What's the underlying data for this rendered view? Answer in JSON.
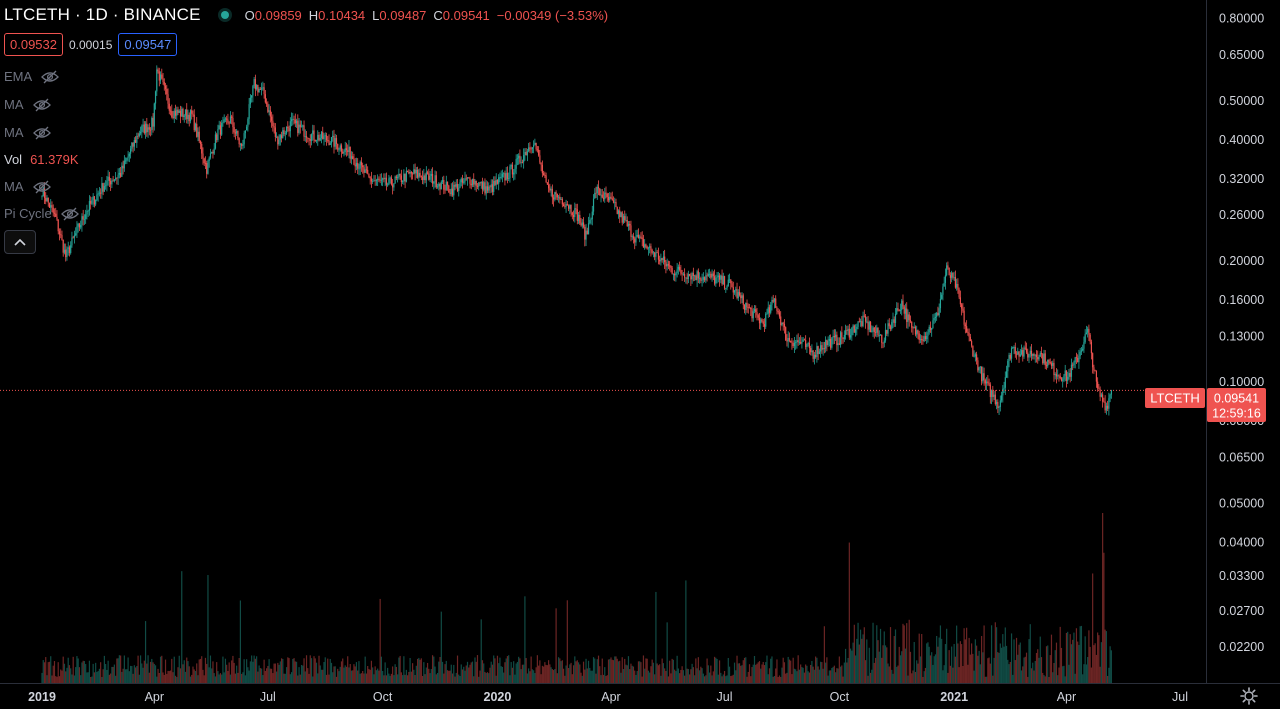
{
  "header": {
    "symbol": "LTCETH",
    "interval": "1D",
    "exchange": "BINANCE",
    "o_label": "O",
    "o_value": "0.09859",
    "h_label": "H",
    "h_value": "0.10434",
    "l_label": "L",
    "l_value": "0.09487",
    "c_label": "C",
    "c_value": "0.09541",
    "change": "−0.00349 (−3.53%)"
  },
  "quotes": {
    "bid": "0.09532",
    "spread": "0.00015",
    "ask": "0.09547"
  },
  "indicators": [
    {
      "name": "EMA"
    },
    {
      "name": "MA"
    },
    {
      "name": "MA"
    },
    {
      "name": "Vol",
      "value": "61.379K"
    },
    {
      "name": "MA"
    },
    {
      "name": "Pi Cycle"
    }
  ],
  "colors": {
    "up": "#26a69a",
    "down": "#ef5350",
    "background": "#000000",
    "axis_text": "#d1d4dc"
  },
  "icons": {
    "status": "dot-icon",
    "hidden": "eye-off-icon",
    "collapse": "chevron-up-icon",
    "settings": "gear-icon"
  },
  "chart_data": {
    "type": "candlestick",
    "symbol": "LTCETH",
    "scale": "log",
    "ylim": [
      0.0195,
      0.86
    ],
    "y_ticks": [
      "0.80000",
      "0.65000",
      "0.50000",
      "0.40000",
      "0.32000",
      "0.26000",
      "0.20000",
      "0.16000",
      "0.13000",
      "0.10000",
      "0.08000",
      "0.06500",
      "0.05000",
      "0.04000",
      "0.03300",
      "0.02700",
      "0.02200"
    ],
    "x_ticks": [
      "2019",
      "Apr",
      "Jul",
      "Oct",
      "2020",
      "Apr",
      "Jul",
      "Oct",
      "2021",
      "Apr",
      "Jul"
    ],
    "x_ticks_bold": [
      "2019",
      "2020",
      "2021"
    ],
    "last_price": {
      "symbol": "LTCETH",
      "value": "0.09541",
      "countdown": "12:59:16"
    },
    "close_series": {
      "note_units": "ETH per LTC, approximate daily closes",
      "x": [
        "2019-01-01",
        "2019-01-12",
        "2019-01-20",
        "2019-02-05",
        "2019-02-20",
        "2019-03-05",
        "2019-03-20",
        "2019-03-31",
        "2019-04-03",
        "2019-04-15",
        "2019-05-01",
        "2019-05-13",
        "2019-05-22",
        "2019-06-01",
        "2019-06-10",
        "2019-06-20",
        "2019-06-28",
        "2019-07-08",
        "2019-07-20",
        "2019-08-05",
        "2019-08-20",
        "2019-09-05",
        "2019-09-20",
        "2019-10-05",
        "2019-10-25",
        "2019-11-10",
        "2019-11-25",
        "2019-12-10",
        "2019-12-25",
        "2020-01-10",
        "2020-01-20",
        "2020-01-30",
        "2020-02-10",
        "2020-02-25",
        "2020-03-05",
        "2020-03-12",
        "2020-03-20",
        "2020-04-01",
        "2020-04-20",
        "2020-05-05",
        "2020-05-20",
        "2020-06-05",
        "2020-06-20",
        "2020-07-05",
        "2020-07-20",
        "2020-08-01",
        "2020-08-10",
        "2020-08-20",
        "2020-09-01",
        "2020-09-10",
        "2020-09-20",
        "2020-10-01",
        "2020-10-20",
        "2020-11-05",
        "2020-11-20",
        "2020-11-28",
        "2020-12-08",
        "2020-12-18",
        "2020-12-26",
        "2021-01-02",
        "2021-01-12",
        "2021-01-25",
        "2021-02-06",
        "2021-02-16",
        "2021-02-26",
        "2021-03-10",
        "2021-03-25",
        "2021-04-02",
        "2021-04-10",
        "2021-04-18",
        "2021-04-26",
        "2021-05-03",
        "2021-05-07"
      ],
      "close": [
        0.3,
        0.255,
        0.205,
        0.265,
        0.31,
        0.33,
        0.42,
        0.44,
        0.6,
        0.47,
        0.46,
        0.34,
        0.42,
        0.45,
        0.38,
        0.55,
        0.52,
        0.4,
        0.44,
        0.41,
        0.4,
        0.37,
        0.32,
        0.31,
        0.33,
        0.32,
        0.3,
        0.32,
        0.3,
        0.33,
        0.36,
        0.4,
        0.3,
        0.28,
        0.26,
        0.23,
        0.3,
        0.28,
        0.23,
        0.21,
        0.19,
        0.185,
        0.182,
        0.175,
        0.152,
        0.14,
        0.16,
        0.128,
        0.125,
        0.118,
        0.125,
        0.128,
        0.142,
        0.128,
        0.158,
        0.135,
        0.13,
        0.145,
        0.19,
        0.175,
        0.13,
        0.1,
        0.088,
        0.122,
        0.118,
        0.118,
        0.105,
        0.103,
        0.115,
        0.134,
        0.095,
        0.087,
        0.0954
      ]
    },
    "volume": {
      "panel": "bottom",
      "last_value": "61.379K"
    }
  }
}
